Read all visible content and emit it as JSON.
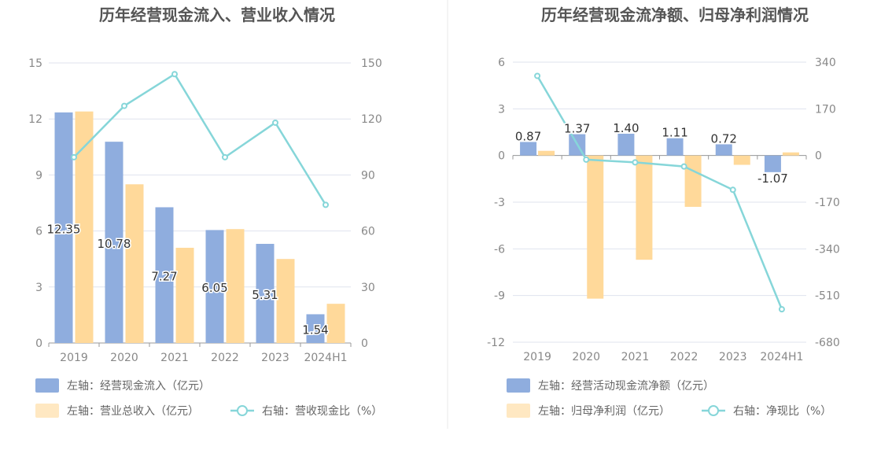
{
  "charts": {
    "left": {
      "title": "历年经营现金流入、营业收入情况",
      "legend": {
        "bar1": "左轴：经营现金流入（亿元）",
        "bar2": "左轴：营业总收入（亿元）",
        "line": "右轴：营收现金比（%）"
      }
    },
    "right": {
      "title": "历年经营现金流净额、归母净利润情况",
      "legend": {
        "bar1": "左轴：经营活动现金流净额（亿元）",
        "bar2": "左轴：归母净利润（亿元）",
        "line": "右轴：净现比（%）"
      }
    }
  },
  "colors": {
    "bar1": "#8fadde",
    "bar2": "#ffd99a",
    "line": "#86d6d9",
    "axis": "#999999",
    "grid": "#dfe3ee",
    "title": "#555555",
    "text": "#888888",
    "divider": "#e8e8e8"
  },
  "chart_data": [
    {
      "type": "bar",
      "title": "历年经营现金流入、营业收入情况",
      "categories": [
        "2019",
        "2020",
        "2021",
        "2022",
        "2023",
        "2024H1"
      ],
      "series": [
        {
          "name": "左轴：经营现金流入（亿元）",
          "axis": "left",
          "type": "bar",
          "values": [
            12.35,
            10.78,
            7.27,
            6.05,
            5.31,
            1.54
          ],
          "labels": [
            "12.35",
            "10.78",
            "7.27",
            "6.05",
            "5.31",
            "1.54"
          ]
        },
        {
          "name": "左轴：营业总收入（亿元）",
          "axis": "left",
          "type": "bar",
          "values": [
            12.4,
            8.5,
            5.1,
            6.1,
            4.5,
            2.1
          ]
        },
        {
          "name": "右轴：营收现金比（%）",
          "axis": "right",
          "type": "line",
          "values": [
            99.5,
            127,
            144,
            99.5,
            118,
            74
          ]
        }
      ],
      "y_left": {
        "min": 0,
        "max": 15,
        "ticks": [
          "0",
          "3",
          "6",
          "9",
          "12",
          "15"
        ]
      },
      "y_right": {
        "min": 0,
        "max": 150,
        "ticks": [
          "0",
          "30",
          "60",
          "90",
          "120",
          "150"
        ]
      },
      "grid": true,
      "legend_position": "bottom-left"
    },
    {
      "type": "bar",
      "title": "历年经营现金流净额、归母净利润情况",
      "categories": [
        "2019",
        "2020",
        "2021",
        "2022",
        "2023",
        "2024H1"
      ],
      "series": [
        {
          "name": "左轴：经营活动现金流净额（亿元）",
          "axis": "left",
          "type": "bar",
          "values": [
            0.87,
            1.37,
            1.4,
            1.11,
            0.72,
            -1.07
          ],
          "labels": [
            "0.87",
            "1.37",
            "1.40",
            "1.11",
            "0.72",
            "-1.07"
          ]
        },
        {
          "name": "左轴：归母净利润（亿元）",
          "axis": "left",
          "type": "bar",
          "values": [
            0.3,
            -9.2,
            -6.7,
            -3.3,
            -0.6,
            0.2
          ]
        },
        {
          "name": "右轴：净现比（%）",
          "axis": "right",
          "type": "line",
          "values": [
            290,
            -15,
            -25,
            -40,
            -125,
            -560
          ]
        }
      ],
      "y_left": {
        "min": -12,
        "max": 6,
        "ticks": [
          "-12",
          "-9",
          "-6",
          "-3",
          "0",
          "3",
          "6"
        ]
      },
      "y_right": {
        "min": -680,
        "max": 340,
        "ticks": [
          "-680",
          "-510",
          "-340",
          "-170",
          "0",
          "170",
          "340"
        ]
      },
      "grid": true,
      "legend_position": "bottom-left"
    }
  ]
}
